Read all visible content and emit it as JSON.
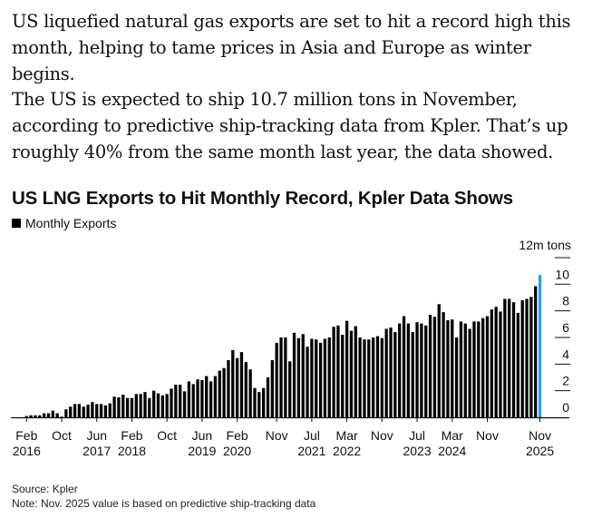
{
  "article": {
    "paragraph_1": "US liquefied natural gas exports are set to hit a record high this month, helping to tame prices in Asia and Europe as winter begins.",
    "paragraph_2": "The US is expected to ship 10.7 million tons in November, according to predictive ship-tracking data from Kpler. That’s up roughly 40% from the same month last year, the data showed."
  },
  "chart_data": {
    "type": "bar",
    "title": "US LNG Exports to Hit Monthly Record, Kpler Data Shows",
    "legend": [
      {
        "name": "Monthly Exports",
        "color": "#000000"
      }
    ],
    "legend_placement": "top-left",
    "y_unit_label": "12m tons",
    "ylim": [
      0,
      12
    ],
    "y_ticks": [
      0,
      2,
      4,
      6,
      8,
      10
    ],
    "y_axis_side": "right",
    "grid": false,
    "x_start": "2016-02",
    "x_end": "2025-11",
    "x_ticks": [
      {
        "month_index": 0,
        "label1": "Feb",
        "label2": "2016"
      },
      {
        "month_index": 8,
        "label1": "Oct",
        "label2": ""
      },
      {
        "month_index": 16,
        "label1": "Jun",
        "label2": "2017"
      },
      {
        "month_index": 24,
        "label1": "Feb",
        "label2": "2018"
      },
      {
        "month_index": 32,
        "label1": "Oct",
        "label2": ""
      },
      {
        "month_index": 40,
        "label1": "Jun",
        "label2": "2019"
      },
      {
        "month_index": 48,
        "label1": "Feb",
        "label2": "2020"
      },
      {
        "month_index": 57,
        "label1": "Nov",
        "label2": ""
      },
      {
        "month_index": 65,
        "label1": "Jul",
        "label2": "2021"
      },
      {
        "month_index": 73,
        "label1": "Mar",
        "label2": "2022"
      },
      {
        "month_index": 81,
        "label1": "Nov",
        "label2": ""
      },
      {
        "month_index": 89,
        "label1": "Jul",
        "label2": "2023"
      },
      {
        "month_index": 97,
        "label1": "Mar",
        "label2": "2024"
      },
      {
        "month_index": 105,
        "label1": "Nov",
        "label2": ""
      },
      {
        "month_index": 117,
        "label1": "Nov",
        "label2": "2025"
      }
    ],
    "values": [
      0.1,
      0.15,
      0.15,
      0.15,
      0.3,
      0.3,
      0.5,
      0.3,
      0.05,
      0.6,
      0.8,
      1.0,
      1.0,
      0.8,
      0.95,
      1.15,
      1.0,
      1.0,
      0.9,
      1.05,
      1.55,
      1.5,
      1.7,
      1.45,
      1.45,
      1.75,
      1.75,
      1.9,
      1.45,
      2.0,
      1.8,
      1.65,
      1.75,
      2.15,
      2.45,
      2.45,
      1.95,
      2.7,
      2.5,
      2.85,
      2.8,
      3.1,
      2.7,
      3.1,
      3.5,
      3.7,
      4.3,
      5.05,
      4.45,
      4.9,
      4.15,
      3.6,
      2.2,
      1.9,
      2.2,
      3.0,
      4.3,
      5.6,
      6.0,
      6.0,
      4.2,
      6.35,
      5.95,
      6.25,
      5.3,
      5.9,
      5.85,
      5.6,
      5.9,
      6.0,
      6.8,
      6.9,
      6.2,
      7.25,
      6.5,
      6.85,
      6.0,
      5.85,
      5.85,
      6.0,
      6.1,
      5.95,
      6.65,
      6.75,
      6.4,
      7.05,
      7.6,
      7.05,
      6.4,
      7.15,
      7.05,
      6.9,
      7.7,
      7.55,
      8.5,
      7.9,
      7.3,
      7.35,
      6.0,
      7.2,
      7.05,
      6.65,
      7.2,
      7.2,
      7.45,
      7.6,
      8.1,
      8.3,
      7.95,
      8.9,
      8.9,
      8.65,
      7.85,
      8.8,
      8.9,
      9.05,
      9.85,
      10.7
    ],
    "bar_color": "#000000",
    "highlight_color": "#1ea7e8",
    "highlight_last": true
  },
  "footer": {
    "source": "Source: Kpler",
    "note": "Note: Nov. 2025 value is based on predictive ship-tracking data"
  }
}
